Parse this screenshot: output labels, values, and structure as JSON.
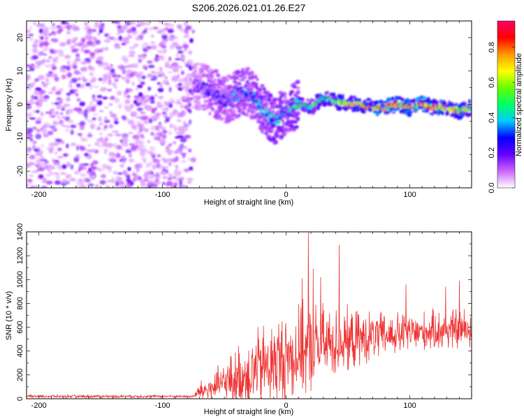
{
  "chart_data": [
    {
      "type": "heatmap",
      "title": "S206.2026.021.01.26.E27",
      "xlabel": "Height of straight line (km)",
      "ylabel": "Frequency (Hz)",
      "xlim": [
        -210,
        150
      ],
      "ylim": [
        -25,
        25
      ],
      "xticks": [
        -200,
        -100,
        0,
        100
      ],
      "yticks": [
        -20,
        -10,
        0,
        10,
        20
      ],
      "colorbar": {
        "label": "Normalized spectral amplitude",
        "range": [
          0,
          0.95
        ],
        "ticks": [
          "0.0",
          "0.2",
          "0.4",
          "0.6",
          "0.8"
        ],
        "colors": [
          "#ffffff",
          "#cc66ff",
          "#6600ff",
          "#0000ff",
          "#00ccff",
          "#00ff66",
          "#66ff00",
          "#ffff00",
          "#ff9900",
          "#ff0000",
          "#ff0066"
        ]
      },
      "noise_region": {
        "x_from": -210,
        "x_to": -75,
        "freq_spread": 25
      },
      "signal_trace": {
        "x": [
          -75,
          -60,
          -50,
          -40,
          -30,
          -20,
          -10,
          0,
          10,
          20,
          30,
          40,
          50,
          60,
          70,
          80,
          90,
          100,
          110,
          120,
          130,
          140,
          150
        ],
        "freq": [
          6,
          4,
          1,
          3,
          4,
          -1,
          -5,
          -2,
          0,
          -1,
          2,
          1,
          0,
          0,
          -1,
          -1,
          0,
          -1,
          0,
          -1,
          -1,
          -2,
          -1
        ],
        "amplitude": [
          0.2,
          0.3,
          0.3,
          0.35,
          0.35,
          0.4,
          0.4,
          0.4,
          0.45,
          0.5,
          0.55,
          0.6,
          0.7,
          0.75,
          0.8,
          0.8,
          0.85,
          0.8,
          0.85,
          0.8,
          0.75,
          0.7,
          0.6
        ]
      }
    },
    {
      "type": "line",
      "xlabel": "Height of straight line (km)",
      "ylabel": "SNR (10 * v/v)",
      "xlim": [
        -210,
        150
      ],
      "ylim": [
        0,
        1400
      ],
      "xticks": [
        -200,
        -100,
        0,
        100
      ],
      "yticks": [
        0,
        200,
        400,
        600,
        800,
        1000,
        1200,
        1400
      ],
      "color": "#ee3333",
      "series": [
        {
          "name": "SNR",
          "x": [
            -210,
            -180,
            -150,
            -120,
            -90,
            -75,
            -70,
            -60,
            -50,
            -40,
            -30,
            -20,
            -10,
            0,
            10,
            20,
            30,
            40,
            50,
            60,
            70,
            80,
            90,
            100,
            110,
            120,
            130,
            140,
            150
          ],
          "baseline": [
            20,
            20,
            20,
            20,
            20,
            20,
            60,
            90,
            130,
            170,
            220,
            260,
            300,
            340,
            380,
            420,
            450,
            470,
            480,
            500,
            520,
            530,
            540,
            550,
            560,
            570,
            580,
            580,
            580
          ],
          "spread": [
            15,
            15,
            15,
            15,
            15,
            15,
            100,
            150,
            220,
            300,
            380,
            420,
            450,
            480,
            450,
            450,
            400,
            350,
            320,
            280,
            250,
            230,
            220,
            210,
            200,
            200,
            220,
            220,
            220
          ]
        }
      ],
      "peaks": [
        {
          "x": 18,
          "y": 1400
        },
        {
          "x": 43,
          "y": 1290
        },
        {
          "x": 22,
          "y": 1090
        },
        {
          "x": 28,
          "y": 1020
        },
        {
          "x": 13,
          "y": 1010
        },
        {
          "x": 140,
          "y": 990
        },
        {
          "x": 97,
          "y": 960
        },
        {
          "x": 129,
          "y": 940
        }
      ]
    }
  ]
}
